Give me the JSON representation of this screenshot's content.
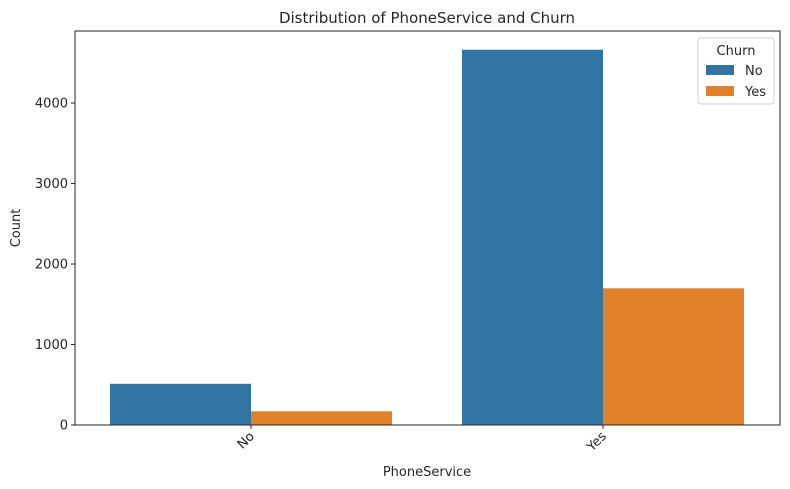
{
  "chart_data": {
    "type": "bar",
    "title": "Distribution of PhoneService and Churn",
    "xlabel": "PhoneService",
    "ylabel": "Count",
    "categories": [
      "No",
      "Yes"
    ],
    "series": [
      {
        "name": "No",
        "color": "#3274a1",
        "values": [
          512,
          4662
        ]
      },
      {
        "name": "Yes",
        "color": "#e1812c",
        "values": [
          170,
          1699
        ]
      }
    ],
    "ylim": [
      0,
      4895
    ],
    "yticks": [
      0,
      1000,
      2000,
      3000,
      4000
    ],
    "legend": {
      "title": "Churn",
      "position": "top-right"
    },
    "grid": false
  }
}
